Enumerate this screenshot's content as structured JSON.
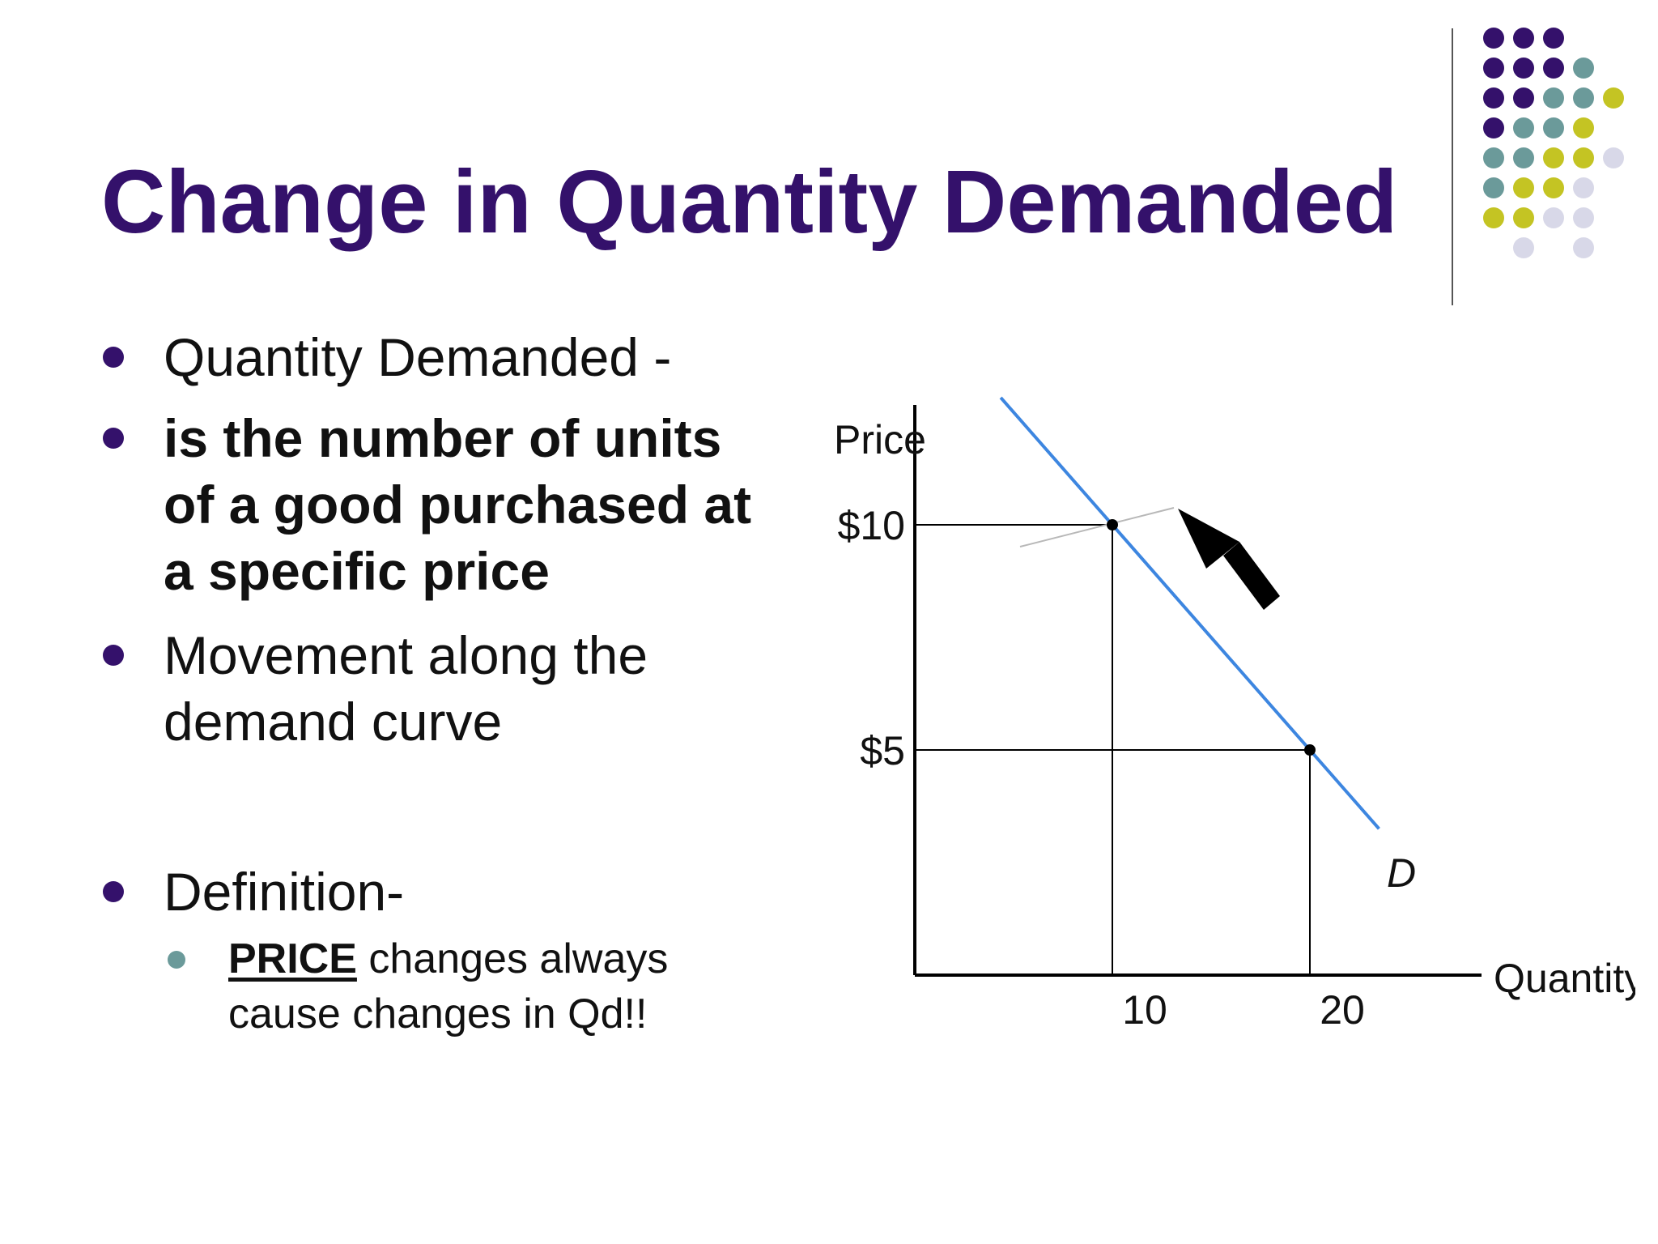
{
  "slide": {
    "title": "Change in Quantity Demanded",
    "bullets": [
      {
        "lines": [
          "Quantity Demanded -"
        ],
        "bold": false
      },
      {
        "lines": [
          "is the number of units",
          "of a good purchased at",
          "a specific price"
        ],
        "bold": true
      },
      {
        "lines": [
          "Movement along the",
          "demand curve"
        ],
        "bold": false
      },
      {
        "lines": [
          "Definition-"
        ],
        "bold": false
      }
    ],
    "sub_bullet": {
      "strong": "PRICE",
      "line1_rest": " changes always",
      "line2": "cause changes in Qd!!"
    }
  },
  "colors": {
    "title": "#34116b",
    "bullet": "#34116b",
    "sub_bullet": "#6b9a9a",
    "demand_line": "#3d86e0",
    "dot_palette": [
      "#34116b",
      "#6b9a9a",
      "#c4c423",
      "#d8d8e8"
    ]
  },
  "chart_data": {
    "type": "line",
    "xlabel": "Quantity",
    "ylabel": "Price",
    "x_ticks": [
      "10",
      "20"
    ],
    "y_ticks": [
      "$10",
      "$5"
    ],
    "series": [
      {
        "name": "D",
        "points": [
          {
            "x": 10,
            "y": 10
          },
          {
            "x": 20,
            "y": 5
          }
        ]
      }
    ],
    "highlighted_points": [
      {
        "x": 10,
        "y": 10
      },
      {
        "x": 20,
        "y": 5
      }
    ],
    "annotation": "arrow pointing up-left along D from (20, $5) toward (10, $10)"
  }
}
